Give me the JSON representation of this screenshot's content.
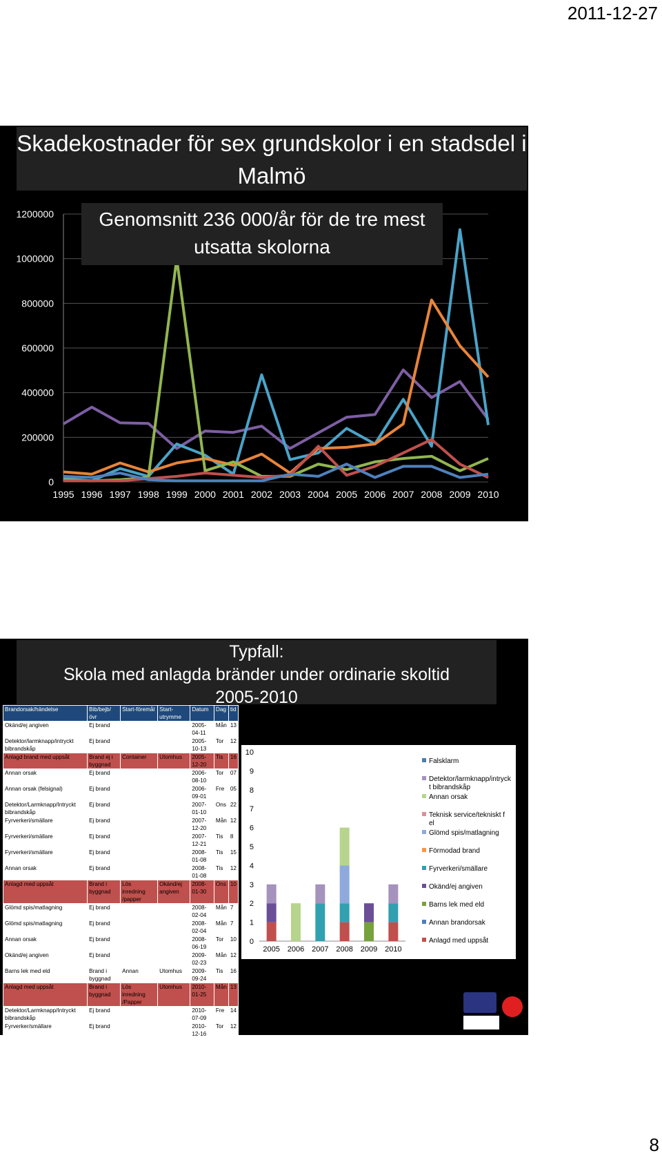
{
  "header": {
    "date": "2011-12-27"
  },
  "footer": {
    "page_number": "8"
  },
  "slide1": {
    "title": "Skadekostnader för sex grundskolor i en stadsdel i Malmö",
    "subtitle": "Genomsnitt 236 000/år för de tre mest utsatta skolorna",
    "colors": {
      "background": "#000000",
      "grid": "#555555",
      "text": "#ffffff"
    }
  },
  "slide2": {
    "title_line1": "Typfall:",
    "title_line2": "Skola med anlagda bränder under ordinarie skoltid",
    "title_line3": "2005-2010",
    "table": {
      "headers": [
        "Brandorsak/händelse",
        "Bib/bejb/övr",
        "Start-föremål",
        "Start-utrymme",
        "Datum",
        "Dag",
        "tid"
      ],
      "rows": [
        {
          "c": [
            "Okänd/ej angiven",
            "Ej brand",
            "",
            "",
            "2005-04-11",
            "Mån",
            "13"
          ],
          "hl": false
        },
        {
          "c": [
            "Detektor/larmknapp/intryckt bibrandskåp",
            "Ej brand",
            "",
            "",
            "2005-10-13",
            "Tor",
            "12"
          ],
          "hl": false
        },
        {
          "c": [
            "Anlagd brand med uppsåt",
            "Brand ej i byggnad",
            "Container",
            "Utomhus",
            "2005-12-20",
            "Tis",
            "16"
          ],
          "hl": true
        },
        {
          "c": [
            "Annan orsak",
            "Ej brand",
            "",
            "",
            "2006-08-10",
            "Tor",
            "07"
          ],
          "hl": false
        },
        {
          "c": [
            "Annan orsak (felsignal)",
            "Ej brand",
            "",
            "",
            "2006-09-01",
            "Fre",
            "05"
          ],
          "hl": false
        },
        {
          "c": [
            "Detektor/Larmknapp/Intryckt bibrandskåp",
            "Ej brand",
            "",
            "",
            "2007-01-10",
            "Ons",
            "22"
          ],
          "hl": false
        },
        {
          "c": [
            "Fyrverkeri/smällare",
            "Ej brand",
            "",
            "",
            "2007-12-20",
            "Mån",
            "12"
          ],
          "hl": false
        },
        {
          "c": [
            "Fyrverkeri/smällare",
            "Ej brand",
            "",
            "",
            "2007-12-21",
            "Tis",
            "8"
          ],
          "hl": false
        },
        {
          "c": [
            "Fyrverkeri/smällare",
            "Ej brand",
            "",
            "",
            "2008-01-08",
            "Tis",
            "15"
          ],
          "hl": false
        },
        {
          "c": [
            "Annan orsak",
            "Ej brand",
            "",
            "",
            "2008-01-08",
            "Tis",
            "12"
          ],
          "hl": false
        },
        {
          "c": [
            "Anlagd med uppsåt",
            "Brand i byggnad",
            "Lös inredning /papper",
            "Okänd/ej angiven",
            "2008-01-30",
            "Ons",
            "10"
          ],
          "hl": true
        },
        {
          "c": [
            "Glömd spis/matlagning",
            "Ej brand",
            "",
            "",
            "2008-02-04",
            "Mån",
            "7"
          ],
          "hl": false
        },
        {
          "c": [
            "Glömd spis/matlagning",
            "Ej brand",
            "",
            "",
            "2008-02-04",
            "Mån",
            "7"
          ],
          "hl": false
        },
        {
          "c": [
            "Annan orsak",
            "Ej brand",
            "",
            "",
            "2008-06-19",
            "Tor",
            "10"
          ],
          "hl": false
        },
        {
          "c": [
            "Okänd/ej angiven",
            "Ej brand",
            "",
            "",
            "2009-02-23",
            "Mån",
            "12"
          ],
          "hl": false
        },
        {
          "c": [
            "Barns lek med eld",
            "Brand i byggnad",
            "Annan",
            "Utomhus",
            "2009-09-24",
            "Tis",
            "16"
          ],
          "hl": false
        },
        {
          "c": [
            "Anlagd med uppsåt",
            "Brand i byggnad",
            "Lös inredning /Papper",
            "Utomhus",
            "2010-01-25",
            "Mån",
            "13"
          ],
          "hl": true
        },
        {
          "c": [
            "Detektor/Larmknapp/Intryckt bibrandskåp",
            "Ej brand",
            "",
            "",
            "2010-07-09",
            "Fre",
            "14"
          ],
          "hl": false
        },
        {
          "c": [
            "Fyrverker/smällare",
            "Ej brand",
            "",
            "",
            "2010-12-16",
            "Tor",
            "12"
          ],
          "hl": false
        }
      ]
    }
  },
  "chart_data": [
    {
      "type": "line",
      "title": "",
      "xlabel": "",
      "ylabel": "",
      "x": [
        "1995",
        "1996",
        "1997",
        "1998",
        "1999",
        "2000",
        "2001",
        "2002",
        "2003",
        "2004",
        "2005",
        "2006",
        "2007",
        "2008",
        "2009",
        "2010"
      ],
      "ylim": [
        0,
        1200000
      ],
      "yticks": [
        0,
        200000,
        400000,
        600000,
        800000,
        1000000,
        1200000
      ],
      "grid": true,
      "series": [
        {
          "color": "#7d5ea3",
          "values": [
            260000,
            335000,
            265000,
            262000,
            150000,
            228000,
            222000,
            250000,
            150000,
            220000,
            290000,
            302000,
            502000,
            378000,
            450000,
            280000
          ]
        },
        {
          "color": "#4aa3c8",
          "values": [
            15000,
            5000,
            60000,
            25000,
            170000,
            120000,
            35000,
            480000,
            100000,
            130000,
            240000,
            170000,
            370000,
            160000,
            1130000,
            255000
          ]
        },
        {
          "color": "#e8843a",
          "values": [
            45000,
            35000,
            85000,
            45000,
            85000,
            105000,
            75000,
            125000,
            40000,
            150000,
            155000,
            170000,
            260000,
            815000,
            610000,
            470000
          ]
        },
        {
          "color": "#92b550",
          "values": [
            10000,
            5000,
            10000,
            20000,
            1000000,
            50000,
            90000,
            25000,
            25000,
            80000,
            55000,
            90000,
            105000,
            115000,
            50000,
            105000
          ]
        },
        {
          "color": "#c0504d",
          "values": [
            5000,
            5000,
            5000,
            15000,
            25000,
            40000,
            30000,
            20000,
            30000,
            160000,
            30000,
            70000,
            130000,
            190000,
            80000,
            20000
          ]
        },
        {
          "color": "#4f81bd",
          "values": [
            25000,
            20000,
            40000,
            10000,
            5000,
            5000,
            5000,
            5000,
            35000,
            25000,
            80000,
            20000,
            70000,
            70000,
            20000,
            35000
          ]
        }
      ]
    },
    {
      "type": "bar",
      "stacked": true,
      "title": "",
      "xlabel": "",
      "ylabel": "",
      "categories": [
        "2005",
        "2006",
        "2007",
        "2008",
        "2009",
        "2010"
      ],
      "ylim": [
        0,
        10
      ],
      "yticks": [
        0,
        1,
        2,
        3,
        4,
        5,
        6,
        7,
        8,
        9,
        10
      ],
      "legend_position": "right",
      "series": [
        {
          "name": "Falsklarm",
          "color": "#4a7fa8",
          "values": [
            0,
            0,
            0,
            0,
            0,
            0
          ]
        },
        {
          "name": "Detektor/larmknapp/intryckt bibrandskåp",
          "color": "#a592bd",
          "values": [
            1,
            0,
            1,
            0,
            0,
            1
          ]
        },
        {
          "name": "Annan orsak",
          "color": "#b6d48c",
          "values": [
            0,
            2,
            0,
            2,
            0,
            0
          ]
        },
        {
          "name": "Teknisk service/tekniskt fel",
          "color": "#d9919a",
          "values": [
            0,
            0,
            0,
            0,
            0,
            0
          ]
        },
        {
          "name": "Glömd spis/matlagning",
          "color": "#8ea9db",
          "values": [
            0,
            0,
            0,
            2,
            0,
            0
          ]
        },
        {
          "name": "Förmodad brand",
          "color": "#f79646",
          "values": [
            0,
            0,
            0,
            0,
            0,
            0
          ]
        },
        {
          "name": "Fyrverkeri/smällare",
          "color": "#31a0b0",
          "values": [
            0,
            0,
            2,
            1,
            0,
            1
          ]
        },
        {
          "name": "Okänd/ej angiven",
          "color": "#6a4f96",
          "values": [
            1,
            0,
            0,
            0,
            1,
            0
          ]
        },
        {
          "name": "Barns lek med eld",
          "color": "#77a13c",
          "values": [
            0,
            0,
            0,
            0,
            1,
            0
          ]
        },
        {
          "name": "Annan brandorsak",
          "color": "#4f7fb8",
          "values": [
            0,
            0,
            0,
            0,
            0,
            0
          ]
        },
        {
          "name": "Anlagd med uppsåt",
          "color": "#c0504d",
          "values": [
            1,
            0,
            0,
            1,
            0,
            1
          ]
        }
      ]
    }
  ]
}
